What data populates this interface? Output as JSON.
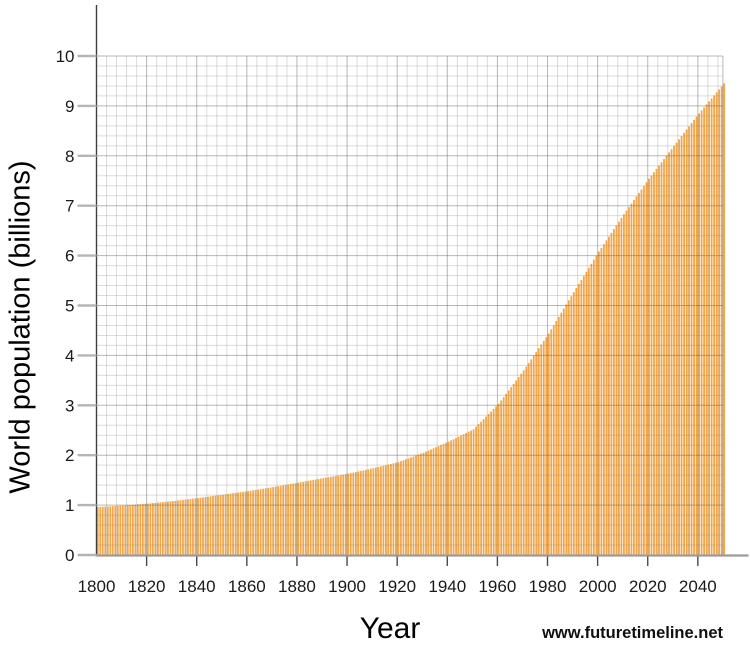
{
  "page": {
    "background": "#ffffff"
  },
  "watermark": {
    "text": "www.futuretimeline.net"
  },
  "chart_data": {
    "type": "area",
    "style": "yearly-vertical-pinstripe-bars",
    "title": "",
    "series_name": "World population",
    "xlabel": "Year",
    "ylabel": "World population (billions)",
    "xlim": [
      1800,
      2050
    ],
    "ylim": [
      0,
      10
    ],
    "x_ticks": [
      1800,
      1820,
      1840,
      1860,
      1880,
      1900,
      1920,
      1940,
      1960,
      1980,
      2000,
      2020,
      2040
    ],
    "y_ticks": [
      0,
      1,
      2,
      3,
      4,
      5,
      6,
      7,
      8,
      9,
      10
    ],
    "grid": "major every 20 yr / 1 billion, minor every 4 yr / 0.2 billion",
    "categories": [
      1800,
      1810,
      1820,
      1830,
      1840,
      1850,
      1860,
      1870,
      1880,
      1890,
      1900,
      1910,
      1920,
      1930,
      1940,
      1950,
      1960,
      1970,
      1980,
      1990,
      2000,
      2010,
      2020,
      2030,
      2040,
      2050
    ],
    "values": [
      0.96,
      0.99,
      1.03,
      1.08,
      1.14,
      1.21,
      1.28,
      1.36,
      1.45,
      1.54,
      1.63,
      1.74,
      1.86,
      2.05,
      2.27,
      2.52,
      3.03,
      3.7,
      4.44,
      5.27,
      6.08,
      6.83,
      7.54,
      8.2,
      8.85,
      9.45
    ],
    "colors": {
      "bar": "#F2A74B",
      "grid_minor": "rgba(130,130,130,0.28)",
      "grid_major": "rgba(95,95,95,0.45)",
      "y_axis": "#3e3e3e",
      "x_axis": "#9a9a9a",
      "x_tick": "#4a4a4a",
      "y_tick": "#b5b5b5",
      "tick_label": "#1a1a1a"
    }
  }
}
